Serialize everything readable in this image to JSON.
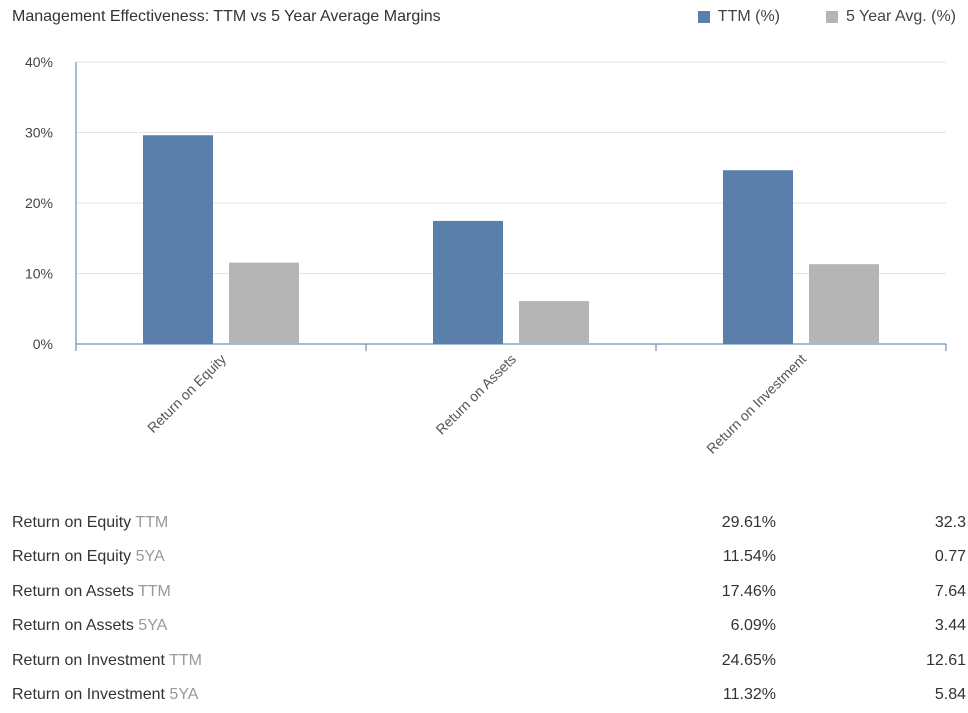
{
  "header": {
    "title": "Management Effectiveness: TTM vs 5 Year Average Margins"
  },
  "colors": {
    "ttm": "#5b7fab",
    "avg": "#b5b5b5",
    "grid": "#e4e4e4",
    "axis": "#6f8fb5",
    "text": "#333333",
    "muted": "#999999"
  },
  "chart_data": {
    "type": "bar",
    "title": "Management Effectiveness: TTM vs 5 Year Average Margins",
    "categories": [
      "Return on Equity",
      "Return on Assets",
      "Return on Investment"
    ],
    "series": [
      {
        "name": "TTM (%)",
        "values": [
          29.61,
          17.46,
          24.65
        ]
      },
      {
        "name": "5 Year Avg. (%)",
        "values": [
          11.54,
          6.09,
          11.32
        ]
      }
    ],
    "yticks": [
      "0%",
      "10%",
      "20%",
      "30%",
      "40%"
    ],
    "ylim": [
      0,
      40
    ],
    "grid": true,
    "legend": "top-right",
    "xlabel": "",
    "ylabel": ""
  },
  "table": {
    "rows": [
      {
        "label": "Return on Equity",
        "suffix": "TTM",
        "value": "29.61%",
        "other": "32.3"
      },
      {
        "label": "Return on Equity",
        "suffix": "5YA",
        "value": "11.54%",
        "other": "0.77"
      },
      {
        "label": "Return on Assets",
        "suffix": "TTM",
        "value": "17.46%",
        "other": "7.64"
      },
      {
        "label": "Return on Assets",
        "suffix": "5YA",
        "value": "6.09%",
        "other": "3.44"
      },
      {
        "label": "Return on Investment",
        "suffix": "TTM",
        "value": "24.65%",
        "other": "12.61"
      },
      {
        "label": "Return on Investment",
        "suffix": "5YA",
        "value": "11.32%",
        "other": "5.84"
      }
    ]
  }
}
